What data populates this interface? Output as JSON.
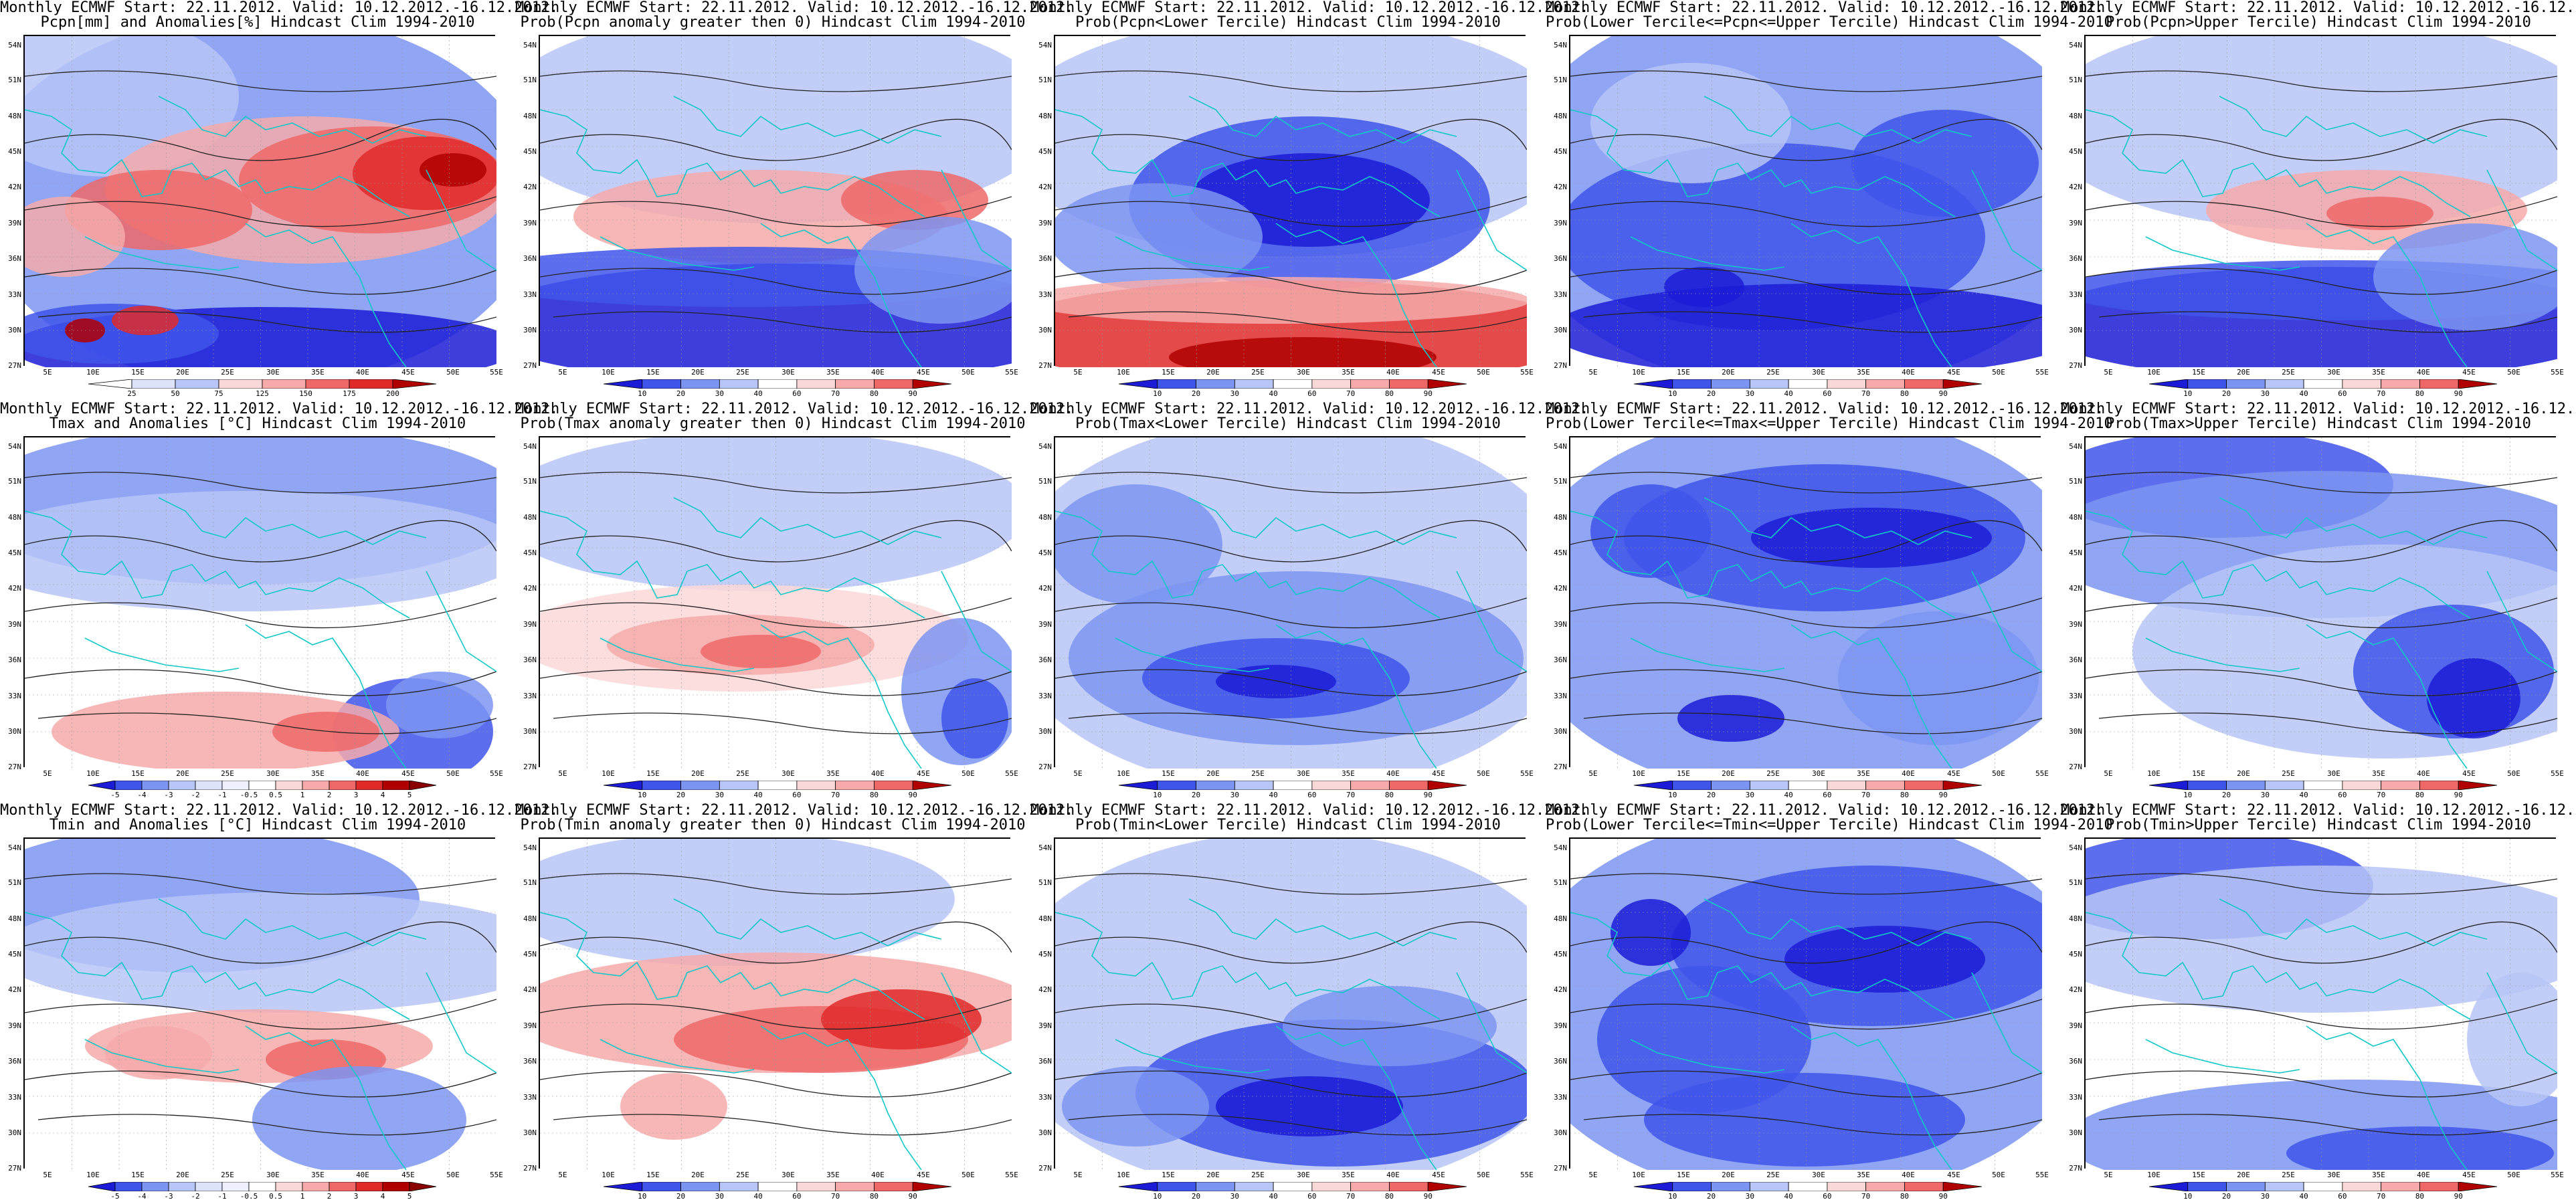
{
  "header_line": "Monthly ECMWF Start: 22.11.2012. Valid: 10.12.2012.-16.12.2012.",
  "lat_labels": [
    "54N",
    "51N",
    "48N",
    "45N",
    "42N",
    "39N",
    "36N",
    "33N",
    "30N",
    "27N"
  ],
  "lon_labels": [
    "5E",
    "10E",
    "15E",
    "20E",
    "25E",
    "30E",
    "35E",
    "40E",
    "45E",
    "50E",
    "55E"
  ],
  "colorbars": {
    "precip": [
      "25",
      "50",
      "75",
      "125",
      "150",
      "175",
      "200"
    ],
    "prob": [
      "10",
      "20",
      "30",
      "40",
      "60",
      "70",
      "80",
      "90"
    ],
    "temp": [
      "-5",
      "-4",
      "-3",
      "-2",
      "-1",
      "-0.5",
      "0.5",
      "1",
      "2",
      "3",
      "4",
      "5"
    ]
  },
  "colors": {
    "blues": [
      "#1c1cd6",
      "#3f55ea",
      "#7d95f2",
      "#b7c5f7",
      "#dde3fb"
    ],
    "reds": [
      "#fbd8d8",
      "#f6aaaa",
      "#ee6868",
      "#e02a2a",
      "#b00000"
    ],
    "coast": "#10c8c8"
  },
  "panels": [
    {
      "name": "pcpn-anomaly",
      "subtitle": "Pcpn[mm] and Anomalies[%] Hindcast Clim 1994-2010",
      "bar": "precip",
      "theme": "pcpn"
    },
    {
      "name": "prob-pcpn-anomaly-gt-0",
      "subtitle": "Prob(Pcpn anomaly greater then 0) Hindcast Clim 1994-2010",
      "bar": "prob",
      "theme": "pprob"
    },
    {
      "name": "prob-pcpn-lower-tercile",
      "subtitle": "Prob(Pcpn<Lower Tercile) Hindcast Clim 1994-2010",
      "bar": "prob",
      "theme": "plow"
    },
    {
      "name": "prob-pcpn-middle-tercile",
      "subtitle": "Prob(Lower Tercile<=Pcpn<=Upper Tercile) Hindcast Clim 1994-2010",
      "bar": "prob",
      "theme": "pmid"
    },
    {
      "name": "prob-pcpn-upper-tercile",
      "subtitle": "Prob(Pcpn>Upper Tercile) Hindcast Clim 1994-2010",
      "bar": "prob",
      "theme": "pup"
    },
    {
      "name": "tmax-anomaly",
      "subtitle": "Tmax and Anomalies [°C] Hindcast Clim 1994-2010",
      "bar": "temp",
      "theme": "tmax"
    },
    {
      "name": "prob-tmax-anomaly-gt-0",
      "subtitle": "Prob(Tmax anomaly greater then 0) Hindcast Clim 1994-2010",
      "bar": "prob",
      "theme": "tmaxprob"
    },
    {
      "name": "prob-tmax-lower-tercile",
      "subtitle": "Prob(Tmax<Lower Tercile) Hindcast Clim 1994-2010",
      "bar": "prob",
      "theme": "tmaxlow"
    },
    {
      "name": "prob-tmax-middle-tercile",
      "subtitle": "Prob(Lower Tercile<=Tmax<=Upper Tercile) Hindcast Clim 1994-2010",
      "bar": "prob",
      "theme": "tmaxmid"
    },
    {
      "name": "prob-tmax-upper-tercile",
      "subtitle": "Prob(Tmax>Upper Tercile) Hindcast Clim 1994-2010",
      "bar": "prob",
      "theme": "tmaxup"
    },
    {
      "name": "tmin-anomaly",
      "subtitle": "Tmin and Anomalies [°C] Hindcast Clim 1994-2010",
      "bar": "temp",
      "theme": "tmin"
    },
    {
      "name": "prob-tmin-anomaly-gt-0",
      "subtitle": "Prob(Tmin anomaly greater then 0) Hindcast Clim 1994-2010",
      "bar": "prob",
      "theme": "tminprob"
    },
    {
      "name": "prob-tmin-lower-tercile",
      "subtitle": "Prob(Tmin<Lower Tercile) Hindcast Clim 1994-2010",
      "bar": "prob",
      "theme": "tminlow"
    },
    {
      "name": "prob-tmin-middle-tercile",
      "subtitle": "Prob(Lower Tercile<=Tmin<=Upper Tercile) Hindcast Clim 1994-2010",
      "bar": "prob",
      "theme": "tminmid"
    },
    {
      "name": "prob-tmin-upper-tercile",
      "subtitle": "Prob(Tmin>Upper Tercile) Hindcast Clim 1994-2010",
      "bar": "prob",
      "theme": "tminup"
    }
  ]
}
